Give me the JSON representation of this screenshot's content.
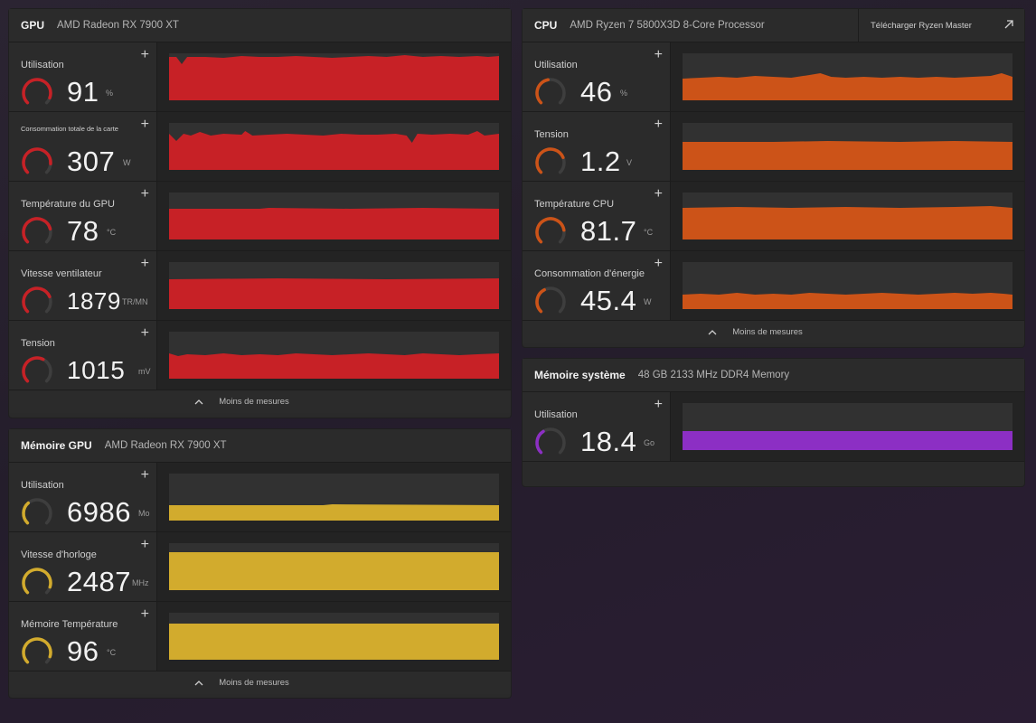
{
  "colors": {
    "red": "#c72126",
    "orange": "#cc5318",
    "yellow": "#d2ab2d",
    "purple": "#8c2fc4",
    "track": "#3e3e3e"
  },
  "gpu": {
    "title": "GPU",
    "subtitle": "AMD Radeon RX 7900 XT",
    "less_label": "Moins de mesures",
    "metrics": [
      {
        "label": "Utilisation",
        "value": "91",
        "unit": "%",
        "fraction": 0.91
      },
      {
        "label": "Consommation totale de la carte",
        "value": "307",
        "unit": "W",
        "fraction": 0.85
      },
      {
        "label": "Température du GPU",
        "value": "78",
        "unit": "°C",
        "fraction": 0.78
      },
      {
        "label": "Vitesse ventilateur",
        "value": "1879",
        "unit": "TR/MN",
        "fraction": 0.75
      },
      {
        "label": "Tension",
        "value": "1015",
        "unit": "mV",
        "fraction": 0.6
      }
    ]
  },
  "cpu": {
    "title": "CPU",
    "subtitle": "AMD Ryzen 7 5800X3D 8-Core Processor",
    "download_label": "Télécharger Ryzen Master",
    "less_label": "Moins de mesures",
    "metrics": [
      {
        "label": "Utilisation",
        "value": "46",
        "unit": "%",
        "fraction": 0.46
      },
      {
        "label": "Tension",
        "value": "1.2",
        "unit": "V",
        "fraction": 0.75
      },
      {
        "label": "Température CPU",
        "value": "81.7",
        "unit": "°C",
        "fraction": 0.8
      },
      {
        "label": "Consommation d'énergie",
        "value": "45.4",
        "unit": "W",
        "fraction": 0.4
      }
    ]
  },
  "vram": {
    "title": "Mémoire GPU",
    "subtitle": "AMD Radeon RX 7900 XT",
    "less_label": "Moins de mesures",
    "metrics": [
      {
        "label": "Utilisation",
        "value": "6986",
        "unit": "Mo",
        "fraction": 0.35
      },
      {
        "label": "Vitesse d'horloge",
        "value": "2487",
        "unit": "MHz",
        "fraction": 0.9
      },
      {
        "label": "Mémoire Température",
        "value": "96",
        "unit": "°C",
        "fraction": 0.9
      }
    ]
  },
  "sysmem": {
    "title": "Mémoire système",
    "subtitle": "48 GB 2133 MHz DDR4 Memory",
    "metrics": [
      {
        "label": "Utilisation",
        "value": "18.4",
        "unit": "Go",
        "fraction": 0.38
      }
    ]
  }
}
